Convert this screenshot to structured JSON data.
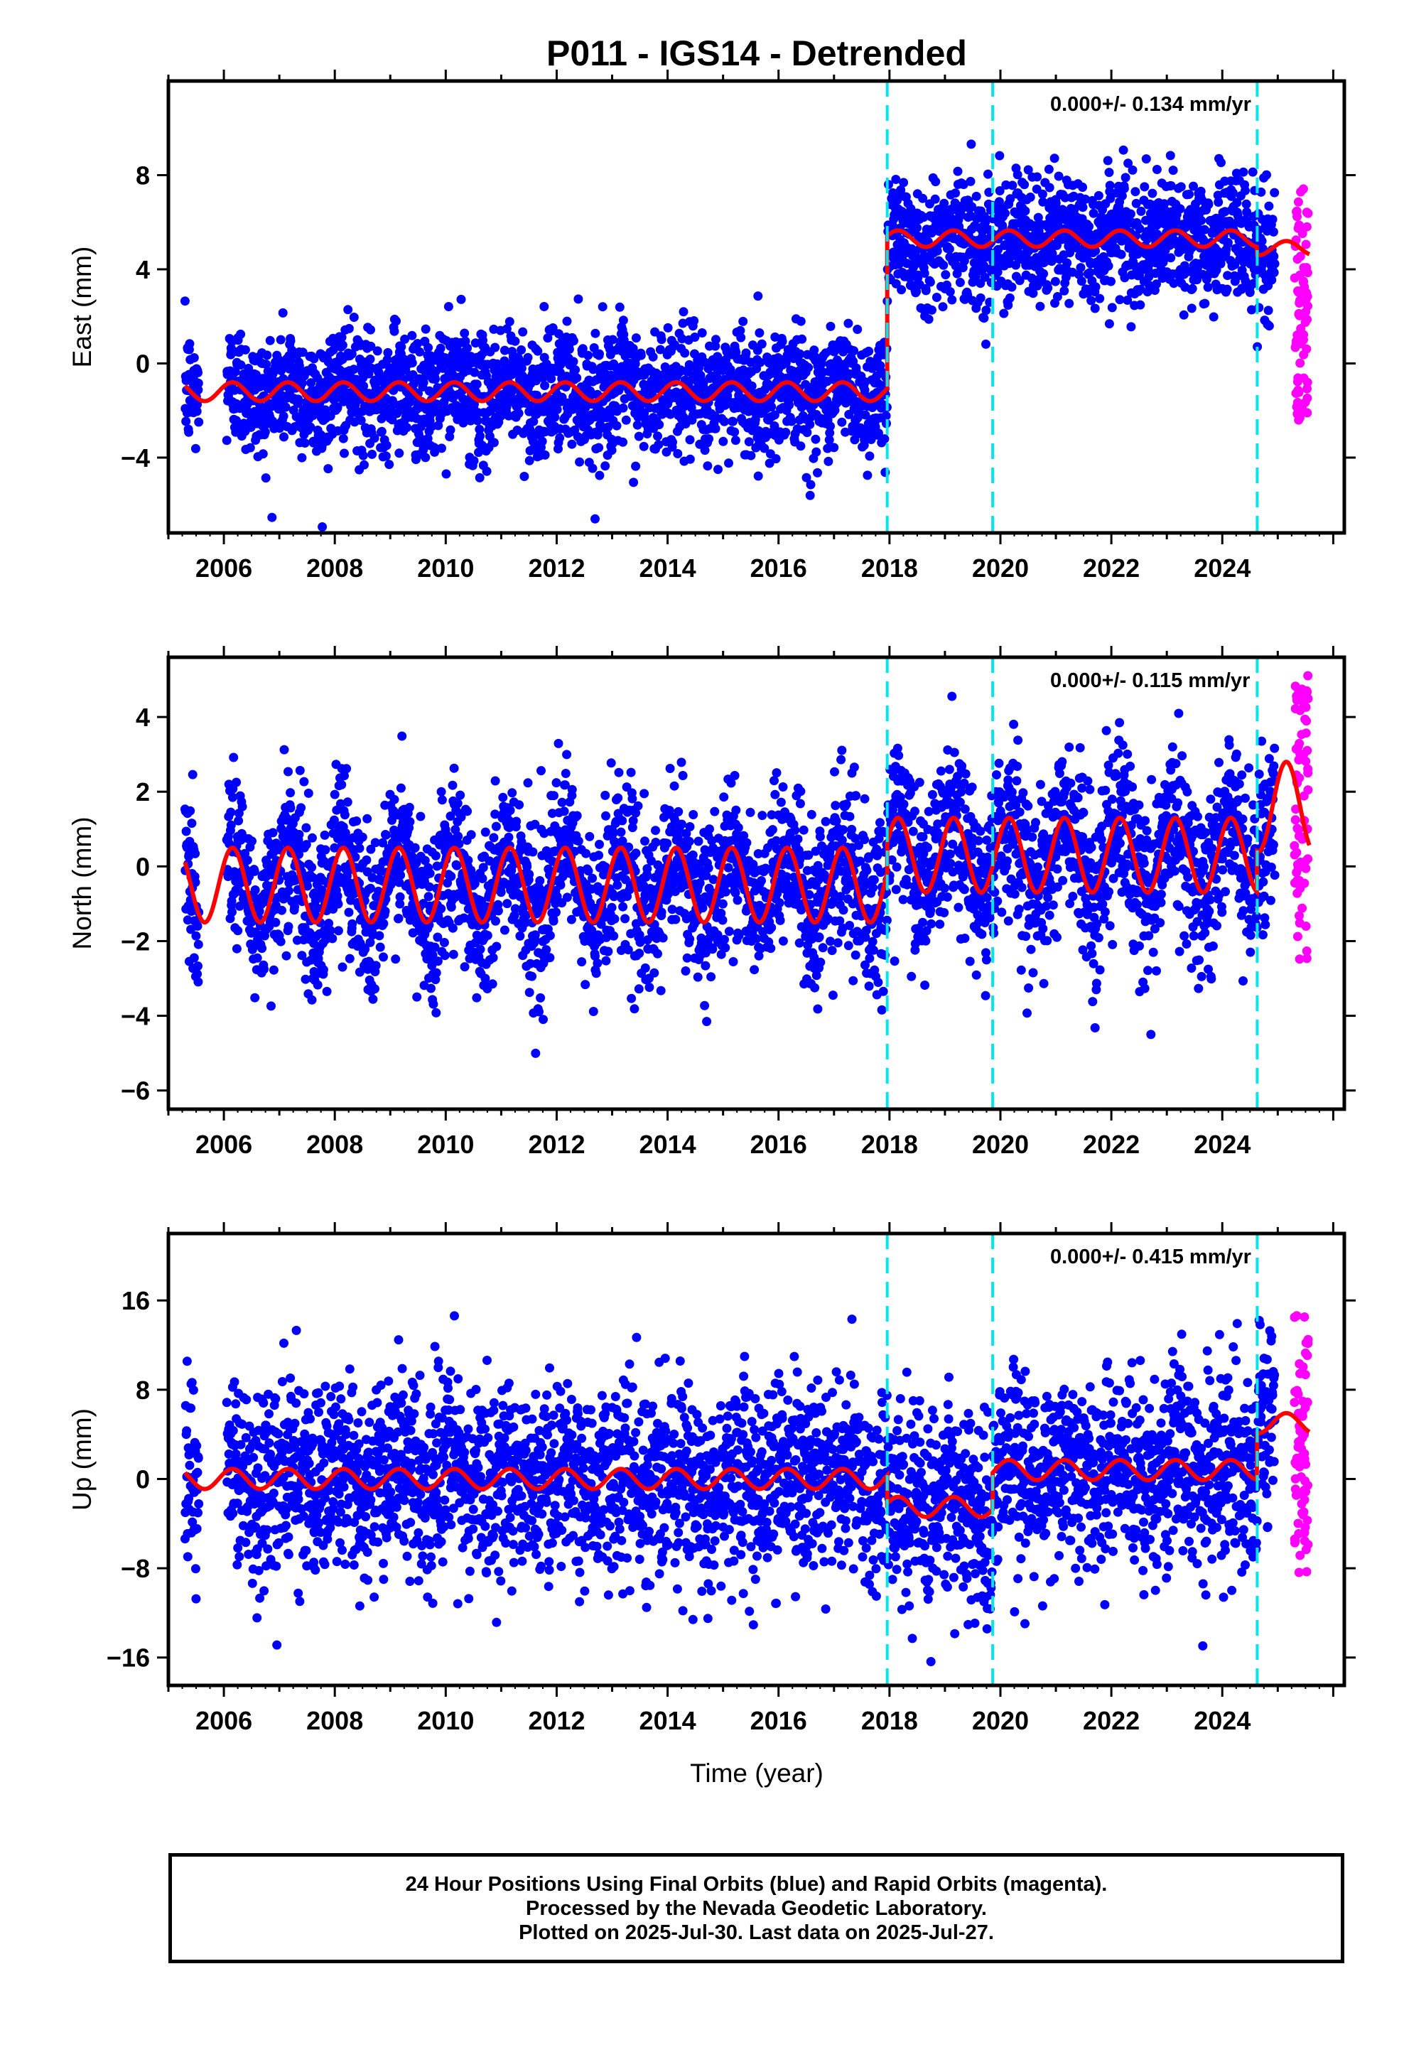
{
  "title": "P011 - IGS14 - Detrended",
  "xlabel": "Time (year)",
  "x_ticks": [
    "2006",
    "2008",
    "2010",
    "2012",
    "2014",
    "2016",
    "2018",
    "2020",
    "2022",
    "2024"
  ],
  "footer": {
    "line1": "24 Hour Positions Using Final Orbits (blue) and Rapid Orbits (magenta).",
    "line2": "Processed by the Nevada Geodetic Laboratory.",
    "line3": "Plotted on 2025-Jul-30. Last data on 2025-Jul-27."
  },
  "colors": {
    "final_orbits": "#0000ff",
    "rapid_orbits": "#ff00ff",
    "model": "#ff0000",
    "offsets": "#00e5ee"
  },
  "chart_data": [
    {
      "type": "scatter",
      "panel": "east",
      "ylabel": "East (mm)",
      "rate": "0.000+/- 0.134 mm/yr",
      "xlim": [
        2005.0,
        2026.2
      ],
      "ylim": [
        -7.2,
        12.0
      ],
      "y_ticks": [
        -4,
        0,
        4,
        8
      ],
      "offset_epochs": [
        2017.96,
        2019.86,
        2024.63
      ],
      "segments": [
        {
          "x_start": 2005.3,
          "x_end": 2017.96,
          "level": -1.2,
          "seasonal_amplitude": 0.4
        },
        {
          "x_start": 2017.96,
          "x_end": 2024.63,
          "level": 5.3,
          "seasonal_amplitude": 0.35
        },
        {
          "x_start": 2024.63,
          "x_end": 2025.57,
          "level": 4.9,
          "seasonal_amplitude": 0.3
        }
      ],
      "scatter_sd": 1.3,
      "rapid_range": [
        -2.5,
        7.5
      ],
      "series": [
        {
          "name": "Final Orbits",
          "color": "#0000ff"
        },
        {
          "name": "Rapid Orbits",
          "color": "#ff00ff"
        }
      ]
    },
    {
      "type": "scatter",
      "panel": "north",
      "ylabel": "North (mm)",
      "rate": "0.000+/- 0.115 mm/yr",
      "xlim": [
        2005.0,
        2026.2
      ],
      "ylim": [
        -6.5,
        5.6
      ],
      "y_ticks": [
        -6,
        -4,
        -2,
        0,
        2,
        4
      ],
      "offset_epochs": [
        2017.96,
        2019.86,
        2024.63
      ],
      "segments": [
        {
          "x_start": 2005.3,
          "x_end": 2017.96,
          "level": -0.5,
          "seasonal_amplitude": 1.0
        },
        {
          "x_start": 2017.96,
          "x_end": 2024.63,
          "level": 0.3,
          "seasonal_amplitude": 1.0
        },
        {
          "x_start": 2024.63,
          "x_end": 2025.57,
          "level": 1.6,
          "seasonal_amplitude": 1.2
        }
      ],
      "scatter_sd": 1.1,
      "rapid_range": [
        -2.5,
        5.3
      ],
      "series": [
        {
          "name": "Final Orbits",
          "color": "#0000ff"
        },
        {
          "name": "Rapid Orbits",
          "color": "#ff00ff"
        }
      ]
    },
    {
      "type": "scatter",
      "panel": "up",
      "ylabel": "Up (mm)",
      "rate": "0.000+/- 0.415 mm/yr",
      "xlim": [
        2005.0,
        2026.2
      ],
      "ylim": [
        -18.5,
        22.0
      ],
      "y_ticks": [
        -16,
        -8,
        0,
        8,
        16
      ],
      "offset_epochs": [
        2017.96,
        2019.86,
        2024.63
      ],
      "segments": [
        {
          "x_start": 2005.3,
          "x_end": 2017.96,
          "level": 0.0,
          "seasonal_amplitude": 0.9
        },
        {
          "x_start": 2017.96,
          "x_end": 2019.86,
          "level": -2.5,
          "seasonal_amplitude": 0.9
        },
        {
          "x_start": 2019.86,
          "x_end": 2024.63,
          "level": 0.8,
          "seasonal_amplitude": 0.9
        },
        {
          "x_start": 2024.63,
          "x_end": 2025.57,
          "level": 5.0,
          "seasonal_amplitude": 0.9
        }
      ],
      "scatter_sd": 4.2,
      "rapid_range": [
        -9.0,
        15.0
      ],
      "series": [
        {
          "name": "Final Orbits",
          "color": "#0000ff"
        },
        {
          "name": "Rapid Orbits",
          "color": "#ff00ff"
        }
      ]
    }
  ]
}
